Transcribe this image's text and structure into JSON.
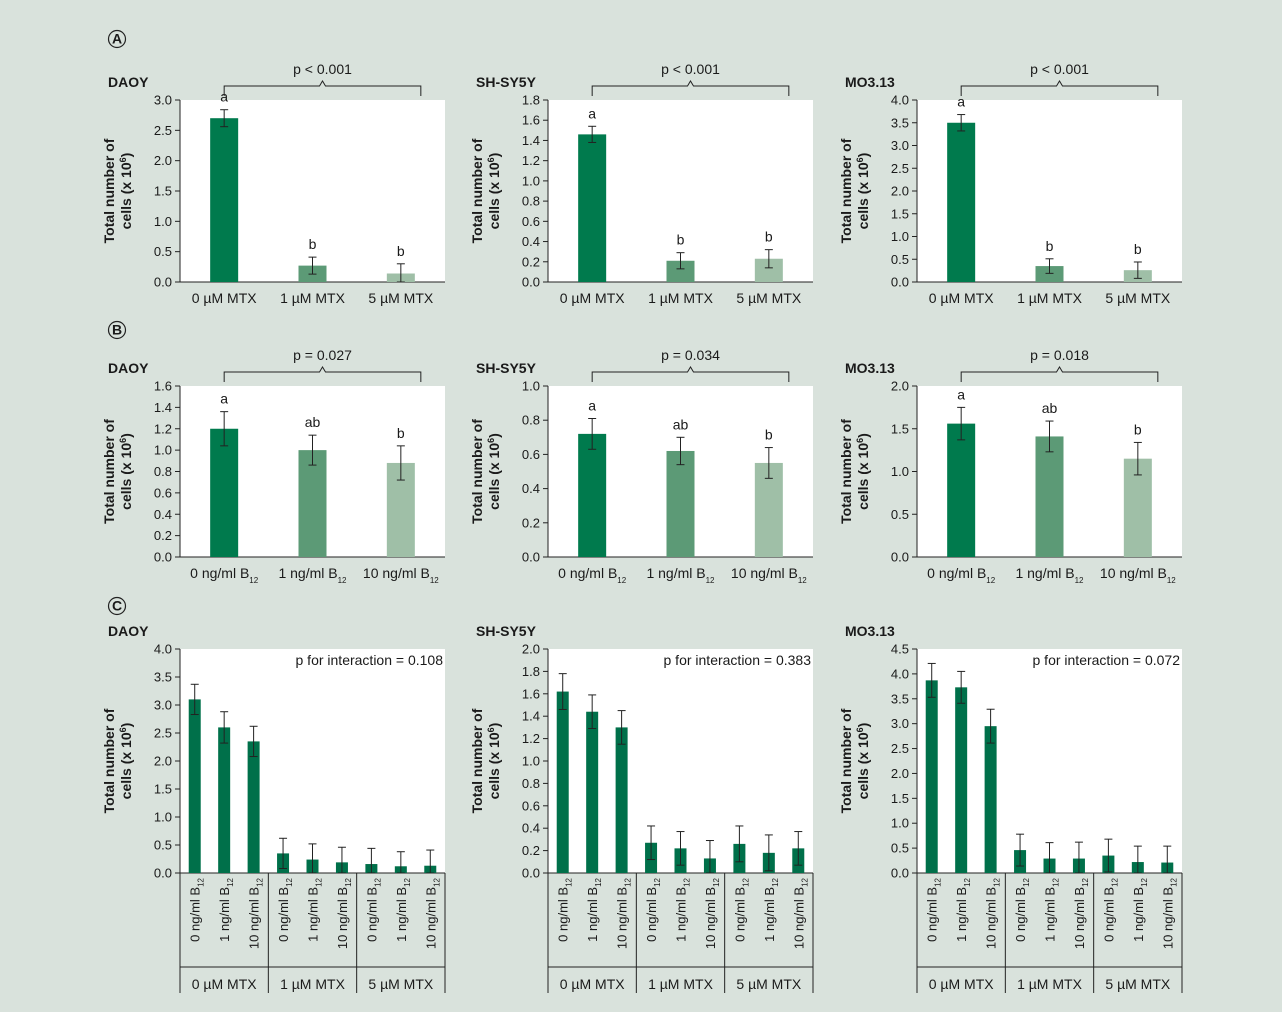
{
  "page": {
    "background": "#d9e2dc"
  },
  "colors": {
    "dark": "#007a4d",
    "mid": "#5c9a76",
    "light": "#9fbfa7",
    "darkC": "#00704a"
  },
  "section_labels": [
    "A",
    "B",
    "C"
  ],
  "chart_data": [
    {
      "section": "A",
      "type": "bar",
      "title": "DAOY",
      "ylabel": "Total number of",
      "ylabel2": "cells (x 10",
      "ylabel_sup": "6",
      "ylabel_end": ")",
      "ylim": [
        0,
        3.0
      ],
      "yticks": [
        "0.0",
        "0.5",
        "1.0",
        "1.5",
        "2.0",
        "2.5",
        "3.0"
      ],
      "categories": [
        [
          "0 µM MTX"
        ],
        [
          "1 µM MTX"
        ],
        [
          "5 µM MTX"
        ]
      ],
      "values": [
        2.7,
        0.27,
        0.14
      ],
      "errors": [
        0.14,
        0.14,
        0.16
      ],
      "letters": [
        "a",
        "b",
        "b"
      ],
      "p_text": "p < 0.001"
    },
    {
      "section": "A",
      "type": "bar",
      "title": "SH-SY5Y",
      "ylabel": "Total number of",
      "ylabel2": "cells (x 10",
      "ylabel_sup": "6",
      "ylabel_end": ")",
      "ylim": [
        0,
        1.8
      ],
      "yticks": [
        "0.0",
        "0.2",
        "0.4",
        "0.6",
        "0.8",
        "1.0",
        "1.2",
        "1.4",
        "1.6",
        "1.8"
      ],
      "categories": [
        [
          "0 µM MTX"
        ],
        [
          "1 µM MTX"
        ],
        [
          "5 µM MTX"
        ]
      ],
      "values": [
        1.46,
        0.21,
        0.23
      ],
      "errors": [
        0.08,
        0.08,
        0.09
      ],
      "letters": [
        "a",
        "b",
        "b"
      ],
      "p_text": "p < 0.001"
    },
    {
      "section": "A",
      "type": "bar",
      "title": "MO3.13",
      "ylabel": "Total number of",
      "ylabel2": "cells (x 10",
      "ylabel_sup": "6",
      "ylabel_end": ")",
      "ylim": [
        0,
        4.0
      ],
      "yticks": [
        "0.0",
        "0.5",
        "1.0",
        "1.5",
        "2.0",
        "2.5",
        "3.0",
        "3.5",
        "4.0"
      ],
      "categories": [
        [
          "0 µM MTX"
        ],
        [
          "1 µM MTX"
        ],
        [
          "5 µM MTX"
        ]
      ],
      "values": [
        3.5,
        0.35,
        0.26
      ],
      "errors": [
        0.18,
        0.16,
        0.18
      ],
      "letters": [
        "a",
        "b",
        "b"
      ],
      "p_text": "p < 0.001"
    },
    {
      "section": "B",
      "type": "bar",
      "title": "DAOY",
      "ylabel": "Total number of",
      "ylabel2": "cells (x 10",
      "ylabel_sup": "6",
      "ylabel_end": ")",
      "ylim": [
        0,
        1.6
      ],
      "yticks": [
        "0.0",
        "0.2",
        "0.4",
        "0.6",
        "0.8",
        "1.0",
        "1.2",
        "1.4",
        "1.6"
      ],
      "categories": [
        [
          "0 ng/ml B",
          "12"
        ],
        [
          "1 ng/ml B",
          "12"
        ],
        [
          "10 ng/ml B",
          "12"
        ]
      ],
      "values": [
        1.2,
        1.0,
        0.88
      ],
      "errors": [
        0.16,
        0.14,
        0.16
      ],
      "letters": [
        "a",
        "ab",
        "b"
      ],
      "p_text": "p = 0.027"
    },
    {
      "section": "B",
      "type": "bar",
      "title": "SH-SY5Y",
      "ylabel": "Total number of",
      "ylabel2": "cells (x 10",
      "ylabel_sup": "6",
      "ylabel_end": ")",
      "ylim": [
        0,
        1.0
      ],
      "yticks": [
        "0.0",
        "0.2",
        "0.4",
        "0.6",
        "0.8",
        "1.0"
      ],
      "categories": [
        [
          "0 ng/ml B",
          "12"
        ],
        [
          "1 ng/ml B",
          "12"
        ],
        [
          "10 ng/ml B",
          "12"
        ]
      ],
      "values": [
        0.72,
        0.62,
        0.55
      ],
      "errors": [
        0.09,
        0.08,
        0.09
      ],
      "letters": [
        "a",
        "ab",
        "b"
      ],
      "p_text": "p = 0.034"
    },
    {
      "section": "B",
      "type": "bar",
      "title": "MO3.13",
      "ylabel": "Total number of",
      "ylabel2": "cells (x 10",
      "ylabel_sup": "6",
      "ylabel_end": ")",
      "ylim": [
        0,
        2.0
      ],
      "yticks": [
        "0.0",
        "0.5",
        "1.0",
        "1.5",
        "2.0"
      ],
      "categories": [
        [
          "0 ng/ml B",
          "12"
        ],
        [
          "1 ng/ml B",
          "12"
        ],
        [
          "10 ng/ml B",
          "12"
        ]
      ],
      "values": [
        1.56,
        1.41,
        1.15
      ],
      "errors": [
        0.19,
        0.18,
        0.19
      ],
      "letters": [
        "a",
        "ab",
        "b"
      ],
      "p_text": "p = 0.018"
    },
    {
      "section": "C",
      "type": "bar",
      "title": "DAOY",
      "ylabel": "Total number of",
      "ylabel2": "cells (x 10",
      "ylabel_sup": "6",
      "ylabel_end": ")",
      "ylim": [
        0,
        4.0
      ],
      "yticks": [
        "0.0",
        "0.5",
        "1.0",
        "1.5",
        "2.0",
        "2.5",
        "3.0",
        "3.5",
        "4.0"
      ],
      "categories": [
        [
          "0 ng/ml B",
          "12"
        ],
        [
          "1 ng/ml B",
          "12"
        ],
        [
          "10 ng/ml B",
          "12"
        ],
        [
          "0 ng/ml B",
          "12"
        ],
        [
          "1 ng/ml B",
          "12"
        ],
        [
          "10 ng/ml B",
          "12"
        ],
        [
          "0 ng/ml B",
          "12"
        ],
        [
          "1 ng/ml B",
          "12"
        ],
        [
          "10 ng/ml B",
          "12"
        ]
      ],
      "groups": [
        "0 µM MTX",
        "1 µM MTX",
        "5 µM MTX"
      ],
      "values": [
        3.1,
        2.6,
        2.35,
        0.35,
        0.24,
        0.19,
        0.16,
        0.12,
        0.13
      ],
      "errors": [
        0.27,
        0.28,
        0.27,
        0.27,
        0.28,
        0.27,
        0.28,
        0.26,
        0.28
      ],
      "p_text": "p for interaction = 0.108"
    },
    {
      "section": "C",
      "type": "bar",
      "title": "SH-SY5Y",
      "ylabel": "Total number of",
      "ylabel2": "cells (x 10",
      "ylabel_sup": "6",
      "ylabel_end": ")",
      "ylim": [
        0,
        2.0
      ],
      "yticks": [
        "0.0",
        "0.2",
        "0.4",
        "0.6",
        "0.8",
        "1.0",
        "1.2",
        "1.4",
        "1.6",
        "1.8",
        "2.0"
      ],
      "categories": [
        [
          "0 ng/ml B",
          "12"
        ],
        [
          "1 ng/ml B",
          "12"
        ],
        [
          "10 ng/ml B",
          "12"
        ],
        [
          "0 ng/ml B",
          "12"
        ],
        [
          "1 ng/ml B",
          "12"
        ],
        [
          "10 ng/ml B",
          "12"
        ],
        [
          "0 ng/ml B",
          "12"
        ],
        [
          "1 ng/ml B",
          "12"
        ],
        [
          "10 ng/ml B",
          "12"
        ]
      ],
      "groups": [
        "0 µM MTX",
        "1 µM MTX",
        "5 µM MTX"
      ],
      "values": [
        1.62,
        1.44,
        1.3,
        0.27,
        0.22,
        0.13,
        0.26,
        0.18,
        0.22
      ],
      "errors": [
        0.16,
        0.15,
        0.15,
        0.15,
        0.15,
        0.16,
        0.16,
        0.16,
        0.15
      ],
      "p_text": "p for interaction = 0.383"
    },
    {
      "section": "C",
      "type": "bar",
      "title": "MO3.13",
      "ylabel": "Total number of",
      "ylabel2": "cells (x 10",
      "ylabel_sup": "6",
      "ylabel_end": ")",
      "ylim": [
        0,
        4.5
      ],
      "yticks": [
        "0.0",
        "0.5",
        "1.0",
        "1.5",
        "2.0",
        "2.5",
        "3.0",
        "3.5",
        "4.0",
        "4.5"
      ],
      "categories": [
        [
          "0 ng/ml B",
          "12"
        ],
        [
          "1 ng/ml B",
          "12"
        ],
        [
          "10 ng/ml B",
          "12"
        ],
        [
          "0 ng/ml B",
          "12"
        ],
        [
          "1 ng/ml B",
          "12"
        ],
        [
          "10 ng/ml B",
          "12"
        ],
        [
          "0 ng/ml B",
          "12"
        ],
        [
          "1 ng/ml B",
          "12"
        ],
        [
          "10 ng/ml B",
          "12"
        ]
      ],
      "groups": [
        "0 µM MTX",
        "1 µM MTX",
        "5 µM MTX"
      ],
      "values": [
        3.87,
        3.73,
        2.95,
        0.46,
        0.29,
        0.29,
        0.35,
        0.22,
        0.21
      ],
      "errors": [
        0.34,
        0.32,
        0.34,
        0.32,
        0.32,
        0.33,
        0.33,
        0.32,
        0.33
      ],
      "p_text": "p for interaction = 0.072"
    }
  ]
}
